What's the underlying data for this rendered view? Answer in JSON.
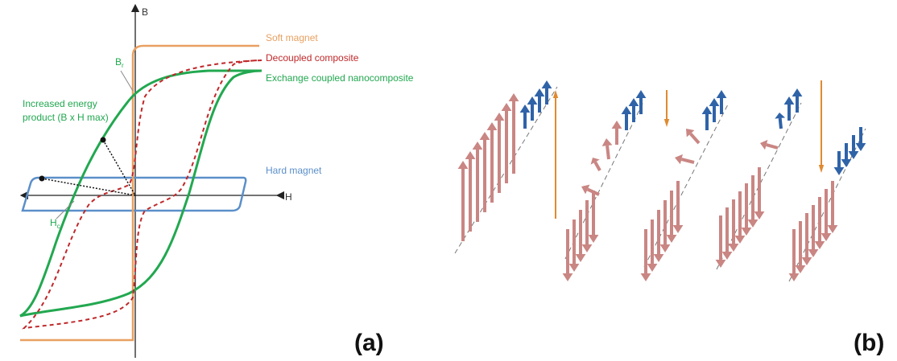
{
  "panel_a": {
    "axis_labels": {
      "y": "B",
      "x": "H"
    },
    "legend": [
      "Soft magnet",
      "Decoupled composite",
      "Exchange coupled nanocomposite",
      "Hard magnet"
    ],
    "annotations": {
      "remanence": {
        "symbol": "B",
        "subscript": "r"
      },
      "coercivity": {
        "symbol": "H",
        "subscript": "c"
      },
      "energy_product": [
        "Increased energy",
        "product (B x H max)"
      ]
    },
    "label": "(a)"
  },
  "panel_b": {
    "label": "(b)"
  }
}
